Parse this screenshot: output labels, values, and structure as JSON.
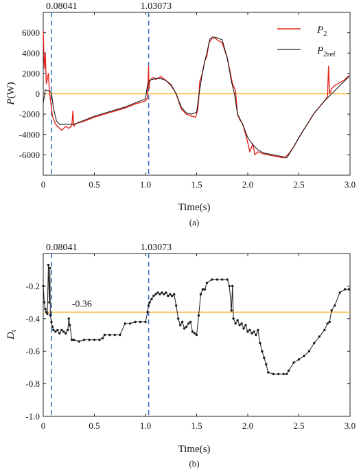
{
  "chart_data": [
    {
      "type": "line",
      "panel_label": "(a)",
      "xlabel": "Time(s)",
      "ylabel_main": "P",
      "ylabel_unit": "(W)",
      "xlim": [
        0,
        3.0
      ],
      "ylim": [
        -8000,
        8000
      ],
      "xticks": [
        0,
        0.5,
        1.0,
        1.5,
        2.0,
        2.5,
        3.0
      ],
      "xtick_labels": [
        "0",
        "0.5",
        "1.0",
        "1.5",
        "2.0",
        "2.5",
        "3.0"
      ],
      "yticks": [
        -6000,
        -4000,
        -2000,
        0,
        2000,
        4000,
        6000
      ],
      "ytick_labels": [
        "-6000",
        "-4000",
        "-2000",
        "0",
        "2000",
        "4000",
        "6000"
      ],
      "vlines": [
        {
          "x": 0.08041,
          "label": "0.08041",
          "color": "#3a6fc4"
        },
        {
          "x": 1.03073,
          "label": "1.03073",
          "color": "#3a6fc4"
        }
      ],
      "hlines": [
        {
          "y": 0,
          "color": "#f2b632"
        }
      ],
      "legend": {
        "placement": "top-right"
      },
      "series": [
        {
          "name": "P2",
          "legend_main": "P",
          "legend_sub": "2",
          "color": "#e8231d",
          "x": [
            0,
            0.01,
            0.02,
            0.03,
            0.05,
            0.06,
            0.07,
            0.09,
            0.12,
            0.15,
            0.18,
            0.22,
            0.25,
            0.28,
            0.29,
            0.3,
            0.31,
            0.33,
            0.4,
            0.5,
            0.6,
            0.7,
            0.8,
            0.9,
            1.0,
            1.02,
            1.03,
            1.035,
            1.04,
            1.06,
            1.08,
            1.1,
            1.15,
            1.2,
            1.25,
            1.3,
            1.35,
            1.4,
            1.45,
            1.49,
            1.51,
            1.52,
            1.53,
            1.55,
            1.58,
            1.6,
            1.62,
            1.65,
            1.68,
            1.7,
            1.75,
            1.8,
            1.85,
            1.88,
            1.9,
            1.92,
            1.95,
            1.98,
            2.0,
            2.02,
            2.05,
            2.07,
            2.1,
            2.15,
            2.2,
            2.25,
            2.3,
            2.35,
            2.38,
            2.4,
            2.45,
            2.5,
            2.55,
            2.6,
            2.65,
            2.7,
            2.75,
            2.78,
            2.79,
            2.8,
            2.82,
            2.85,
            2.9,
            2.95,
            2.99
          ],
          "y": [
            6200,
            2500,
            4000,
            1000,
            2000,
            400,
            -500,
            -2200,
            -3000,
            -3300,
            -3600,
            -3200,
            -3400,
            -3100,
            -1700,
            -3200,
            -3000,
            -2900,
            -2700,
            -2300,
            -2000,
            -1700,
            -1400,
            -1000,
            -700,
            -400,
            2700,
            500,
            1200,
            1500,
            1600,
            1400,
            1700,
            1300,
            800,
            0,
            -1500,
            -2000,
            -2200,
            -2300,
            -1600,
            -600,
            1200,
            1800,
            3200,
            3700,
            5000,
            5400,
            5500,
            5300,
            5000,
            3500,
            1000,
            300,
            -2000,
            -2500,
            -3000,
            -4000,
            -4800,
            -5700,
            -4900,
            -6000,
            -5700,
            -5900,
            -6000,
            -6100,
            -6200,
            -6300,
            -6100,
            -5900,
            -5200,
            -4300,
            -3500,
            -2700,
            -1900,
            -1300,
            -700,
            -300,
            2700,
            0,
            500,
            800,
            1100,
            1400,
            1800
          ]
        },
        {
          "name": "P2ref",
          "legend_main": "P",
          "legend_sub": "2ref",
          "color": "#1a1a1a",
          "x": [
            0,
            0.02,
            0.04,
            0.06,
            0.08,
            0.1,
            0.13,
            0.16,
            0.2,
            0.25,
            0.3,
            0.4,
            0.5,
            0.6,
            0.7,
            0.8,
            0.9,
            1.0,
            1.02,
            1.04,
            1.06,
            1.1,
            1.15,
            1.2,
            1.25,
            1.3,
            1.35,
            1.4,
            1.45,
            1.5,
            1.52,
            1.55,
            1.58,
            1.6,
            1.63,
            1.66,
            1.7,
            1.75,
            1.8,
            1.84,
            1.87,
            1.9,
            1.95,
            2.0,
            2.05,
            2.1,
            2.15,
            2.2,
            2.25,
            2.3,
            2.35,
            2.38,
            2.4,
            2.45,
            2.5,
            2.55,
            2.6,
            2.65,
            2.7,
            2.75,
            2.8,
            2.85,
            2.9,
            2.95,
            2.99
          ],
          "y": [
            -900,
            400,
            300,
            300,
            100,
            -1400,
            -2700,
            -3000,
            -3000,
            -3000,
            -3000,
            -2600,
            -2200,
            -1900,
            -1600,
            -1300,
            -900,
            -500,
            900,
            1300,
            1400,
            1500,
            1500,
            1300,
            900,
            0,
            -1300,
            -1900,
            -2000,
            -1800,
            -300,
            1700,
            3200,
            4000,
            5400,
            5600,
            5500,
            5300,
            3500,
            1200,
            0,
            -2000,
            -3000,
            -4300,
            -5000,
            -5500,
            -5800,
            -5900,
            -6000,
            -6100,
            -6200,
            -6300,
            -6000,
            -5200,
            -4300,
            -3500,
            -2700,
            -1900,
            -1300,
            -700,
            -200,
            300,
            800,
            1300,
            1700
          ]
        }
      ]
    },
    {
      "type": "scatter",
      "panel_label": "(b)",
      "xlabel": "Time(s)",
      "ylabel_main": "D",
      "ylabel_sub": "t",
      "xlim": [
        0,
        3.0
      ],
      "ylim": [
        -1.0,
        0.0
      ],
      "xticks": [
        0,
        0.5,
        1.0,
        1.5,
        2.0,
        2.5,
        3.0
      ],
      "xtick_labels": [
        "0",
        "0.5",
        "1.0",
        "1.5",
        "2.0",
        "2.5",
        "3.0"
      ],
      "yticks": [
        -1.0,
        -0.8,
        -0.6,
        -0.4,
        -0.2
      ],
      "ytick_labels": [
        "-1.0",
        "-0.8",
        "-0.6",
        "-0.4",
        "-0.2"
      ],
      "vlines": [
        {
          "x": 0.08041,
          "label": "0.08041",
          "color": "#3a6fc4"
        },
        {
          "x": 1.03073,
          "label": "1.03073",
          "color": "#3a6fc4"
        }
      ],
      "hlines": [
        {
          "y": -0.36,
          "label": "-0.36",
          "color": "#f2b632"
        }
      ],
      "series": [
        {
          "color": "#1a1a1a",
          "x": [
            0.0,
            0.01,
            0.02,
            0.03,
            0.04,
            0.05,
            0.06,
            0.065,
            0.07,
            0.08,
            0.09,
            0.1,
            0.12,
            0.14,
            0.16,
            0.18,
            0.2,
            0.22,
            0.24,
            0.25,
            0.26,
            0.28,
            0.3,
            0.35,
            0.4,
            0.45,
            0.5,
            0.55,
            0.58,
            0.6,
            0.65,
            0.7,
            0.75,
            0.8,
            0.85,
            0.9,
            0.95,
            1.0,
            1.02,
            1.03,
            1.04,
            1.06,
            1.08,
            1.1,
            1.12,
            1.14,
            1.16,
            1.18,
            1.2,
            1.22,
            1.24,
            1.26,
            1.28,
            1.3,
            1.32,
            1.34,
            1.36,
            1.38,
            1.4,
            1.42,
            1.44,
            1.46,
            1.48,
            1.5,
            1.52,
            1.54,
            1.56,
            1.58,
            1.6,
            1.65,
            1.7,
            1.75,
            1.8,
            1.82,
            1.84,
            1.85,
            1.86,
            1.88,
            1.9,
            1.92,
            1.94,
            1.96,
            1.98,
            2.0,
            2.02,
            2.04,
            2.06,
            2.08,
            2.1,
            2.12,
            2.14,
            2.16,
            2.18,
            2.2,
            2.25,
            2.3,
            2.35,
            2.38,
            2.4,
            2.45,
            2.5,
            2.55,
            2.6,
            2.65,
            2.7,
            2.75,
            2.78,
            2.8,
            2.82,
            2.85,
            2.9,
            2.95,
            2.99
          ],
          "y": [
            -0.2,
            -0.3,
            -0.34,
            -0.36,
            -0.37,
            -0.07,
            -0.3,
            -0.09,
            -0.38,
            -0.42,
            -0.45,
            -0.47,
            -0.48,
            -0.47,
            -0.49,
            -0.47,
            -0.48,
            -0.49,
            -0.47,
            -0.4,
            -0.44,
            -0.53,
            -0.53,
            -0.54,
            -0.53,
            -0.53,
            -0.53,
            -0.53,
            -0.52,
            -0.5,
            -0.5,
            -0.5,
            -0.5,
            -0.43,
            -0.43,
            -0.42,
            -0.42,
            -0.42,
            -0.36,
            -0.32,
            -0.3,
            -0.28,
            -0.26,
            -0.25,
            -0.24,
            -0.25,
            -0.24,
            -0.25,
            -0.24,
            -0.26,
            -0.25,
            -0.26,
            -0.25,
            -0.32,
            -0.4,
            -0.44,
            -0.42,
            -0.46,
            -0.45,
            -0.43,
            -0.42,
            -0.48,
            -0.49,
            -0.5,
            -0.38,
            -0.25,
            -0.22,
            -0.22,
            -0.18,
            -0.16,
            -0.16,
            -0.16,
            -0.16,
            -0.2,
            -0.35,
            -0.2,
            -0.4,
            -0.43,
            -0.41,
            -0.44,
            -0.43,
            -0.46,
            -0.44,
            -0.48,
            -0.47,
            -0.49,
            -0.48,
            -0.5,
            -0.47,
            -0.55,
            -0.6,
            -0.64,
            -0.68,
            -0.73,
            -0.74,
            -0.74,
            -0.74,
            -0.74,
            -0.72,
            -0.67,
            -0.65,
            -0.63,
            -0.6,
            -0.55,
            -0.51,
            -0.47,
            -0.43,
            -0.42,
            -0.35,
            -0.32,
            -0.24,
            -0.22,
            -0.22
          ]
        }
      ]
    }
  ]
}
